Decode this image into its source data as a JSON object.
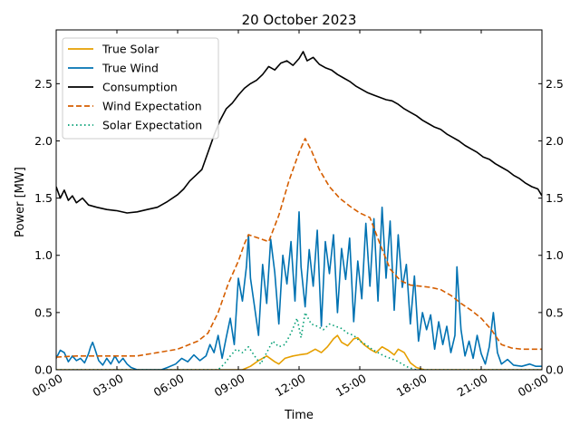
{
  "chart_data": {
    "type": "line",
    "title": "20 October 2023",
    "xlabel": "Time",
    "ylabel": "Power [MW]",
    "xlim_hours": [
      0,
      24
    ],
    "ylim": [
      0,
      2.97
    ],
    "x_ticks": [
      {
        "hour": 0,
        "label": "00:00"
      },
      {
        "hour": 3,
        "label": "03:00"
      },
      {
        "hour": 6,
        "label": "06:00"
      },
      {
        "hour": 9,
        "label": "09:00"
      },
      {
        "hour": 12,
        "label": "12:00"
      },
      {
        "hour": 15,
        "label": "15:00"
      },
      {
        "hour": 18,
        "label": "18:00"
      },
      {
        "hour": 21,
        "label": "21:00"
      },
      {
        "hour": 24,
        "label": "00:00"
      }
    ],
    "y_ticks": [
      0.0,
      0.5,
      1.0,
      1.5,
      2.0,
      2.5
    ],
    "y_tick_labels": [
      "0.0",
      "0.5",
      "1.0",
      "1.5",
      "2.0",
      "2.5"
    ],
    "right_axis_mirror": true,
    "grid": false,
    "legend_position": "top-left",
    "series": [
      {
        "name": "True Solar",
        "color": "#E69F00",
        "style": "solid",
        "points": [
          [
            0,
            0
          ],
          [
            9.2,
            0
          ],
          [
            9.6,
            0.03
          ],
          [
            10.0,
            0.08
          ],
          [
            10.4,
            0.12
          ],
          [
            10.8,
            0.07
          ],
          [
            11.0,
            0.05
          ],
          [
            11.3,
            0.1
          ],
          [
            11.7,
            0.12
          ],
          [
            12.0,
            0.13
          ],
          [
            12.4,
            0.14
          ],
          [
            12.8,
            0.18
          ],
          [
            13.1,
            0.15
          ],
          [
            13.4,
            0.2
          ],
          [
            13.7,
            0.27
          ],
          [
            13.9,
            0.3
          ],
          [
            14.1,
            0.24
          ],
          [
            14.4,
            0.21
          ],
          [
            14.7,
            0.27
          ],
          [
            14.9,
            0.28
          ],
          [
            15.2,
            0.22
          ],
          [
            15.5,
            0.18
          ],
          [
            15.8,
            0.15
          ],
          [
            16.1,
            0.2
          ],
          [
            16.4,
            0.17
          ],
          [
            16.7,
            0.13
          ],
          [
            16.9,
            0.18
          ],
          [
            17.2,
            0.15
          ],
          [
            17.5,
            0.06
          ],
          [
            17.8,
            0.02
          ],
          [
            18.2,
            0.0
          ],
          [
            24,
            0
          ]
        ]
      },
      {
        "name": "True Wind",
        "color": "#0072B2",
        "style": "solid",
        "points": [
          [
            0.0,
            0.1
          ],
          [
            0.2,
            0.17
          ],
          [
            0.4,
            0.15
          ],
          [
            0.6,
            0.07
          ],
          [
            0.8,
            0.12
          ],
          [
            1.0,
            0.08
          ],
          [
            1.2,
            0.1
          ],
          [
            1.4,
            0.06
          ],
          [
            1.6,
            0.14
          ],
          [
            1.7,
            0.2
          ],
          [
            1.8,
            0.24
          ],
          [
            1.9,
            0.19
          ],
          [
            2.1,
            0.08
          ],
          [
            2.3,
            0.04
          ],
          [
            2.5,
            0.1
          ],
          [
            2.7,
            0.05
          ],
          [
            2.9,
            0.12
          ],
          [
            3.1,
            0.06
          ],
          [
            3.3,
            0.1
          ],
          [
            3.5,
            0.05
          ],
          [
            3.7,
            0.02
          ],
          [
            4.0,
            0.0
          ],
          [
            5.2,
            0.0
          ],
          [
            5.5,
            0.02
          ],
          [
            5.9,
            0.05
          ],
          [
            6.2,
            0.1
          ],
          [
            6.5,
            0.07
          ],
          [
            6.8,
            0.13
          ],
          [
            7.1,
            0.08
          ],
          [
            7.4,
            0.12
          ],
          [
            7.6,
            0.22
          ],
          [
            7.8,
            0.15
          ],
          [
            8.0,
            0.3
          ],
          [
            8.2,
            0.1
          ],
          [
            8.4,
            0.28
          ],
          [
            8.6,
            0.45
          ],
          [
            8.8,
            0.22
          ],
          [
            9.0,
            0.8
          ],
          [
            9.2,
            0.6
          ],
          [
            9.4,
            0.9
          ],
          [
            9.5,
            1.18
          ],
          [
            9.6,
            0.8
          ],
          [
            9.8,
            0.55
          ],
          [
            10.0,
            0.3
          ],
          [
            10.2,
            0.92
          ],
          [
            10.4,
            0.58
          ],
          [
            10.6,
            1.14
          ],
          [
            10.8,
            0.85
          ],
          [
            11.0,
            0.4
          ],
          [
            11.2,
            1.0
          ],
          [
            11.4,
            0.75
          ],
          [
            11.6,
            1.12
          ],
          [
            11.8,
            0.6
          ],
          [
            12.0,
            1.38
          ],
          [
            12.1,
            0.9
          ],
          [
            12.3,
            0.55
          ],
          [
            12.5,
            1.05
          ],
          [
            12.7,
            0.73
          ],
          [
            12.9,
            1.22
          ],
          [
            13.1,
            0.38
          ],
          [
            13.3,
            1.12
          ],
          [
            13.5,
            0.84
          ],
          [
            13.7,
            1.18
          ],
          [
            13.9,
            0.5
          ],
          [
            14.1,
            1.06
          ],
          [
            14.3,
            0.79
          ],
          [
            14.5,
            1.15
          ],
          [
            14.7,
            0.42
          ],
          [
            14.9,
            0.95
          ],
          [
            15.1,
            0.62
          ],
          [
            15.3,
            1.28
          ],
          [
            15.5,
            0.73
          ],
          [
            15.7,
            1.32
          ],
          [
            15.9,
            0.6
          ],
          [
            16.1,
            1.42
          ],
          [
            16.3,
            0.8
          ],
          [
            16.5,
            1.3
          ],
          [
            16.7,
            0.52
          ],
          [
            16.9,
            1.18
          ],
          [
            17.1,
            0.72
          ],
          [
            17.3,
            0.92
          ],
          [
            17.5,
            0.4
          ],
          [
            17.7,
            0.82
          ],
          [
            17.9,
            0.25
          ],
          [
            18.1,
            0.5
          ],
          [
            18.3,
            0.35
          ],
          [
            18.5,
            0.48
          ],
          [
            18.7,
            0.18
          ],
          [
            18.9,
            0.42
          ],
          [
            19.1,
            0.22
          ],
          [
            19.3,
            0.38
          ],
          [
            19.5,
            0.15
          ],
          [
            19.7,
            0.3
          ],
          [
            19.8,
            0.9
          ],
          [
            20.0,
            0.35
          ],
          [
            20.2,
            0.12
          ],
          [
            20.4,
            0.25
          ],
          [
            20.6,
            0.1
          ],
          [
            20.8,
            0.3
          ],
          [
            21.0,
            0.14
          ],
          [
            21.2,
            0.05
          ],
          [
            21.4,
            0.2
          ],
          [
            21.6,
            0.5
          ],
          [
            21.8,
            0.15
          ],
          [
            22.0,
            0.05
          ],
          [
            22.3,
            0.09
          ],
          [
            22.6,
            0.04
          ],
          [
            23.0,
            0.03
          ],
          [
            23.4,
            0.05
          ],
          [
            23.7,
            0.03
          ],
          [
            24.0,
            0.03
          ]
        ]
      },
      {
        "name": "Consumption",
        "color": "#000000",
        "style": "solid",
        "points": [
          [
            0.0,
            1.6
          ],
          [
            0.2,
            1.5
          ],
          [
            0.4,
            1.57
          ],
          [
            0.6,
            1.48
          ],
          [
            0.8,
            1.52
          ],
          [
            1.0,
            1.46
          ],
          [
            1.3,
            1.5
          ],
          [
            1.6,
            1.44
          ],
          [
            2.0,
            1.42
          ],
          [
            2.5,
            1.4
          ],
          [
            3.0,
            1.39
          ],
          [
            3.5,
            1.37
          ],
          [
            4.0,
            1.38
          ],
          [
            4.5,
            1.4
          ],
          [
            5.0,
            1.42
          ],
          [
            5.5,
            1.47
          ],
          [
            6.0,
            1.53
          ],
          [
            6.3,
            1.58
          ],
          [
            6.6,
            1.65
          ],
          [
            6.9,
            1.7
          ],
          [
            7.2,
            1.75
          ],
          [
            7.5,
            1.9
          ],
          [
            7.8,
            2.05
          ],
          [
            8.1,
            2.18
          ],
          [
            8.4,
            2.28
          ],
          [
            8.7,
            2.33
          ],
          [
            9.0,
            2.4
          ],
          [
            9.3,
            2.46
          ],
          [
            9.6,
            2.5
          ],
          [
            9.9,
            2.53
          ],
          [
            10.2,
            2.58
          ],
          [
            10.5,
            2.65
          ],
          [
            10.8,
            2.62
          ],
          [
            11.1,
            2.68
          ],
          [
            11.4,
            2.7
          ],
          [
            11.7,
            2.66
          ],
          [
            12.0,
            2.72
          ],
          [
            12.2,
            2.78
          ],
          [
            12.4,
            2.7
          ],
          [
            12.7,
            2.73
          ],
          [
            13.0,
            2.67
          ],
          [
            13.3,
            2.64
          ],
          [
            13.6,
            2.62
          ],
          [
            13.9,
            2.58
          ],
          [
            14.2,
            2.55
          ],
          [
            14.5,
            2.52
          ],
          [
            14.8,
            2.48
          ],
          [
            15.1,
            2.45
          ],
          [
            15.4,
            2.42
          ],
          [
            15.7,
            2.4
          ],
          [
            16.0,
            2.38
          ],
          [
            16.3,
            2.36
          ],
          [
            16.6,
            2.35
          ],
          [
            16.9,
            2.32
          ],
          [
            17.2,
            2.28
          ],
          [
            17.5,
            2.25
          ],
          [
            17.8,
            2.22
          ],
          [
            18.1,
            2.18
          ],
          [
            18.4,
            2.15
          ],
          [
            18.7,
            2.12
          ],
          [
            19.0,
            2.1
          ],
          [
            19.3,
            2.06
          ],
          [
            19.6,
            2.03
          ],
          [
            19.9,
            2.0
          ],
          [
            20.2,
            1.96
          ],
          [
            20.5,
            1.93
          ],
          [
            20.8,
            1.9
          ],
          [
            21.1,
            1.86
          ],
          [
            21.4,
            1.84
          ],
          [
            21.7,
            1.8
          ],
          [
            22.0,
            1.77
          ],
          [
            22.3,
            1.74
          ],
          [
            22.6,
            1.7
          ],
          [
            22.9,
            1.67
          ],
          [
            23.2,
            1.63
          ],
          [
            23.5,
            1.6
          ],
          [
            23.8,
            1.58
          ],
          [
            24.0,
            1.52
          ]
        ]
      },
      {
        "name": "Wind Expectation",
        "color": "#D55E00",
        "style": "dashed",
        "points": [
          [
            0,
            0.11
          ],
          [
            1,
            0.12
          ],
          [
            2,
            0.12
          ],
          [
            3,
            0.12
          ],
          [
            4,
            0.12
          ],
          [
            5,
            0.15
          ],
          [
            6,
            0.18
          ],
          [
            7,
            0.25
          ],
          [
            7.5,
            0.32
          ],
          [
            8,
            0.5
          ],
          [
            8.5,
            0.75
          ],
          [
            9,
            0.95
          ],
          [
            9.3,
            1.1
          ],
          [
            9.5,
            1.18
          ],
          [
            10,
            1.15
          ],
          [
            10.5,
            1.12
          ],
          [
            11,
            1.35
          ],
          [
            11.5,
            1.65
          ],
          [
            12,
            1.9
          ],
          [
            12.3,
            2.02
          ],
          [
            12.6,
            1.92
          ],
          [
            13,
            1.75
          ],
          [
            13.5,
            1.6
          ],
          [
            14,
            1.5
          ],
          [
            14.5,
            1.43
          ],
          [
            15,
            1.37
          ],
          [
            15.5,
            1.33
          ],
          [
            16,
            1.1
          ],
          [
            16.5,
            0.88
          ],
          [
            17,
            0.78
          ],
          [
            17.5,
            0.74
          ],
          [
            18,
            0.73
          ],
          [
            18.5,
            0.72
          ],
          [
            19,
            0.7
          ],
          [
            19.5,
            0.65
          ],
          [
            20,
            0.58
          ],
          [
            20.5,
            0.52
          ],
          [
            21,
            0.45
          ],
          [
            21.5,
            0.35
          ],
          [
            22,
            0.22
          ],
          [
            22.5,
            0.19
          ],
          [
            23,
            0.18
          ],
          [
            24,
            0.18
          ]
        ]
      },
      {
        "name": "Solar Expectation",
        "color": "#009E73",
        "style": "dotted",
        "points": [
          [
            0,
            0
          ],
          [
            8.0,
            0
          ],
          [
            8.3,
            0.05
          ],
          [
            8.6,
            0.12
          ],
          [
            8.9,
            0.18
          ],
          [
            9.2,
            0.15
          ],
          [
            9.5,
            0.2
          ],
          [
            9.8,
            0.12
          ],
          [
            10.1,
            0.05
          ],
          [
            10.4,
            0.15
          ],
          [
            10.7,
            0.25
          ],
          [
            11.0,
            0.2
          ],
          [
            11.3,
            0.22
          ],
          [
            11.6,
            0.32
          ],
          [
            11.9,
            0.45
          ],
          [
            12.1,
            0.28
          ],
          [
            12.3,
            0.5
          ],
          [
            12.6,
            0.4
          ],
          [
            12.9,
            0.38
          ],
          [
            13.2,
            0.35
          ],
          [
            13.5,
            0.4
          ],
          [
            13.8,
            0.38
          ],
          [
            14.1,
            0.36
          ],
          [
            14.4,
            0.32
          ],
          [
            14.7,
            0.3
          ],
          [
            15.0,
            0.25
          ],
          [
            15.3,
            0.22
          ],
          [
            15.6,
            0.18
          ],
          [
            15.9,
            0.15
          ],
          [
            16.2,
            0.12
          ],
          [
            16.5,
            0.1
          ],
          [
            16.8,
            0.08
          ],
          [
            17.1,
            0.05
          ],
          [
            17.4,
            0.02
          ],
          [
            17.8,
            0.0
          ],
          [
            24,
            0
          ]
        ]
      }
    ]
  }
}
